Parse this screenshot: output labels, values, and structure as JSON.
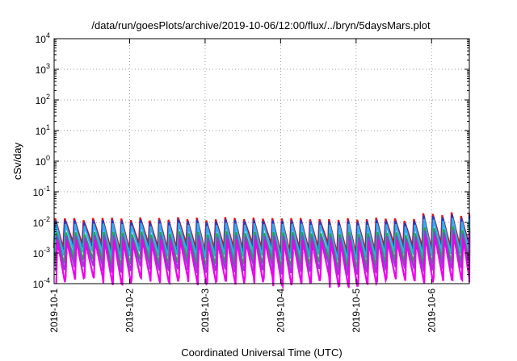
{
  "chart_data": {
    "type": "line",
    "title": "/data/run/goesPlots/archive/2019-10-06/12:00/flux/../bryn/5daysMars.plot",
    "xlabel": "Coordinated Universal Time (UTC)",
    "ylabel": "cSv/day",
    "y_scale": "log",
    "ylim": [
      0.0001,
      10000
    ],
    "y_ticks": [
      {
        "value": 0.0001,
        "base": "10",
        "exp": "-4"
      },
      {
        "value": 0.001,
        "base": "10",
        "exp": "-3"
      },
      {
        "value": 0.01,
        "base": "10",
        "exp": "-2"
      },
      {
        "value": 0.1,
        "base": "10",
        "exp": "-1"
      },
      {
        "value": 1,
        "base": "10",
        "exp": "0"
      },
      {
        "value": 10,
        "base": "10",
        "exp": "1"
      },
      {
        "value": 100,
        "base": "10",
        "exp": "2"
      },
      {
        "value": 1000,
        "base": "10",
        "exp": "3"
      },
      {
        "value": 10000,
        "base": "10",
        "exp": "4"
      }
    ],
    "xlim": [
      "2019-10-01T00:00",
      "2019-10-06T12:00"
    ],
    "x_ticks": [
      "2019-10-1",
      "2019-10-2",
      "2019-10-3",
      "2019-10-4",
      "2019-10-5",
      "2019-10-6"
    ],
    "x_tick_dates": [
      "2019-10-01",
      "2019-10-02",
      "2019-10-03",
      "2019-10-04",
      "2019-10-05",
      "2019-10-06"
    ],
    "grid": true,
    "pattern": "sawtooth, period about 3 hours: sharp rise to peak then decay to trough",
    "series": [
      {
        "color": "#e8101a",
        "peak": 0.013,
        "trough": 0.0017
      },
      {
        "color": "#1a3ccc",
        "peak": 0.011,
        "trough": 0.0011
      },
      {
        "color": "#2ab0ee",
        "peak": 0.0085,
        "trough": 0.0009
      },
      {
        "color": "#22aa44",
        "peak": 0.0045,
        "trough": 0.0005
      },
      {
        "color": "#8844cc",
        "peak": 0.0035,
        "trough": 0.0003
      },
      {
        "color": "#ee00ee",
        "peak": 0.0025,
        "trough": 0.00012
      }
    ]
  }
}
